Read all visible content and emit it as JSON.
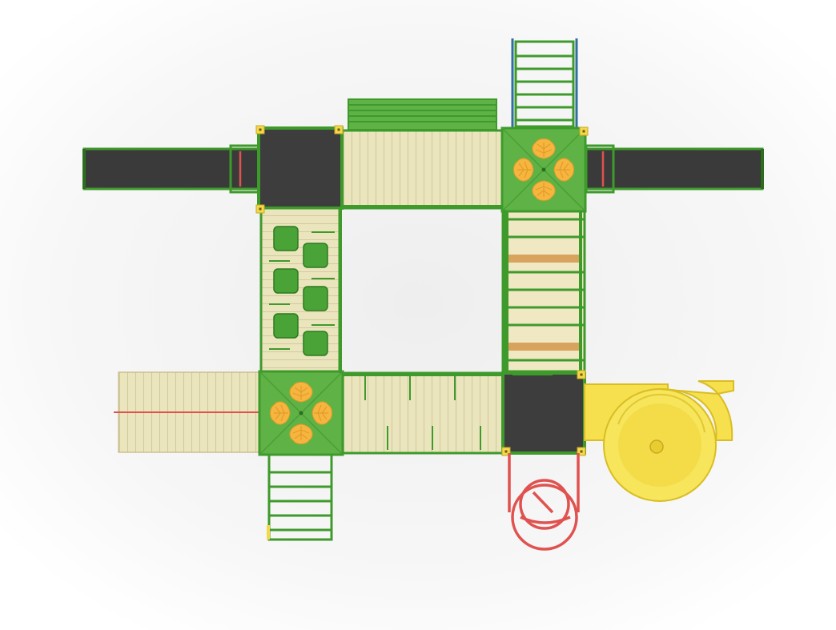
{
  "image": {
    "kind": "3d-render",
    "subject": "playground-complex-top-view",
    "colors": {
      "background": "#ffffff",
      "frame_green": "#3f9a2c",
      "panel_green": "#5fb346",
      "dark_deck": "#3d3d3d",
      "wood_deck": "#e9e3b8",
      "wood_deck_alt": "#d8a35c",
      "slide_yellow": "#f6e04d",
      "leaf_orange": "#f5b53e",
      "rope_red": "#e0524f",
      "rail_blue": "#2f6fa0",
      "cap_yellow": "#f4d84c"
    }
  }
}
